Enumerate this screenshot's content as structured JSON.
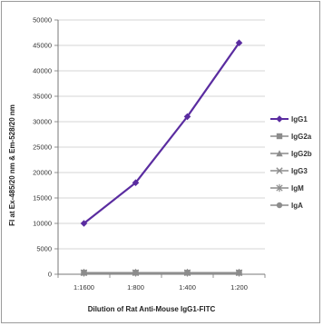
{
  "chart_data": {
    "type": "line",
    "xlabel": "Dilution of Rat Anti-Mouse IgG1-FITC",
    "ylabel": "FI at Ex-485/20 nm & Em-528/20 nm",
    "categories": [
      "1:1600",
      "1:800",
      "1:400",
      "1:200"
    ],
    "ylim": [
      0,
      50000
    ],
    "yticks": [
      0,
      5000,
      10000,
      15000,
      20000,
      25000,
      30000,
      35000,
      40000,
      45000,
      50000
    ],
    "grid": true,
    "legend_position": "right",
    "series": [
      {
        "name": "IgG1",
        "values": [
          10000,
          18000,
          31000,
          45500
        ],
        "color": "#5a2ca0",
        "marker": "diamond"
      },
      {
        "name": "IgG2a",
        "values": [
          300,
          300,
          300,
          300
        ],
        "color": "#8c8c8c",
        "marker": "square"
      },
      {
        "name": "IgG2b",
        "values": [
          300,
          300,
          300,
          300
        ],
        "color": "#8c8c8c",
        "marker": "triangle"
      },
      {
        "name": "IgG3",
        "values": [
          300,
          300,
          300,
          300
        ],
        "color": "#8c8c8c",
        "marker": "x"
      },
      {
        "name": "IgM",
        "values": [
          300,
          300,
          300,
          300
        ],
        "color": "#8c8c8c",
        "marker": "star"
      },
      {
        "name": "IgA",
        "values": [
          300,
          300,
          300,
          300
        ],
        "color": "#8c8c8c",
        "marker": "circle"
      }
    ]
  }
}
